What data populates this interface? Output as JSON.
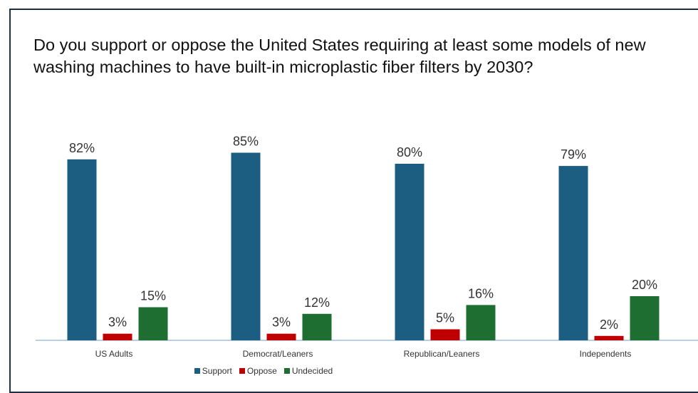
{
  "chart_data": {
    "type": "bar",
    "title": "Do you support or oppose the United States requiring at least some models of new washing machines to have built-in microplastic fiber filters by 2030?",
    "categories": [
      "US Adults",
      "Democrat/Leaners",
      "Republican/Leaners",
      "Independents"
    ],
    "series": [
      {
        "name": "Support",
        "color": "#1b5e82",
        "values": [
          82,
          85,
          80,
          79
        ],
        "labels": [
          "82%",
          "85%",
          "80%",
          "79%"
        ]
      },
      {
        "name": "Oppose",
        "color": "#c00000",
        "values": [
          3,
          3,
          5,
          2
        ],
        "labels": [
          "3%",
          "3%",
          "5%",
          "2%"
        ]
      },
      {
        "name": "Undecided",
        "color": "#1e6e32",
        "values": [
          15,
          12,
          16,
          20
        ],
        "labels": [
          "15%",
          "12%",
          "16%",
          "20%"
        ]
      }
    ],
    "ylim": [
      0,
      100
    ],
    "grid": false,
    "legend_position": "bottom"
  }
}
